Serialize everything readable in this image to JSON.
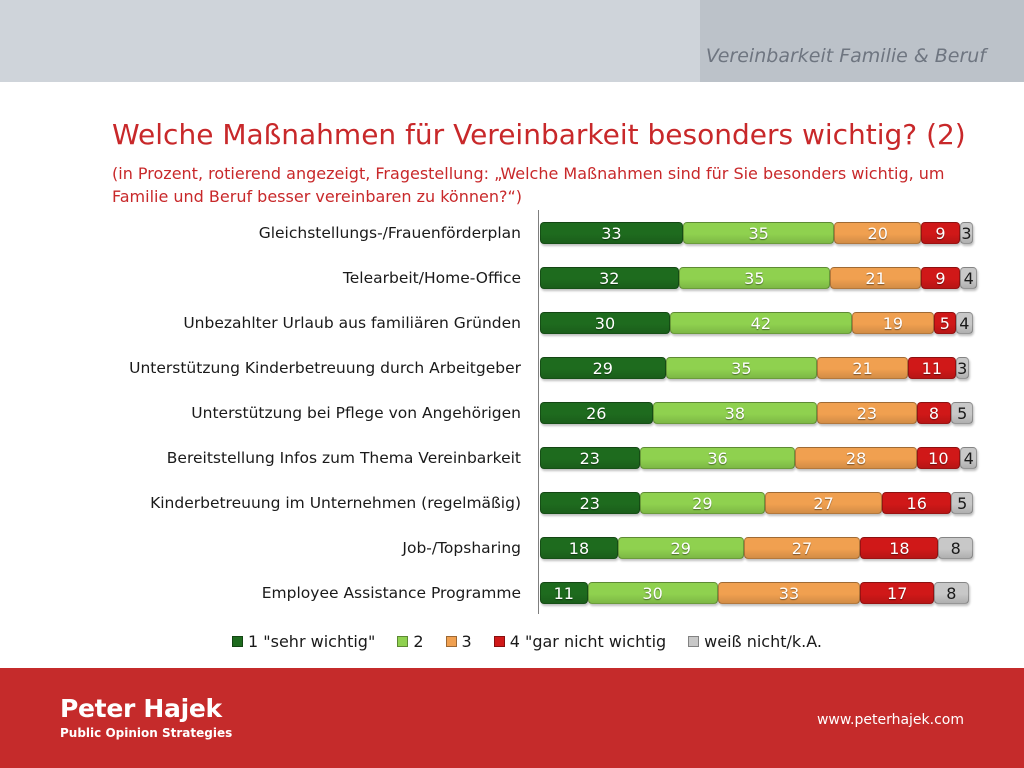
{
  "header": {
    "section_title": "Vereinbarkeit Familie & Beruf"
  },
  "title": "Welche Maßnahmen für Vereinbarkeit besonders wichtig? (2)",
  "subtitle": "(in Prozent, rotierend angezeigt, Fragestellung: „Welche Maßnahmen sind für Sie besonders wichtig, um Familie und Beruf besser vereinbaren zu können?“)",
  "colors": {
    "s1": "#1e6b1e",
    "s2": "#8fd14f",
    "s3": "#f0a050",
    "s4": "#d01818",
    "s5": "#c8c8c8",
    "accent": "#c8282a",
    "footer": "#c52b2b"
  },
  "chart_data": {
    "type": "bar",
    "orientation": "horizontal",
    "stacked": true,
    "categories": [
      "Gleichstellungs-/Frauenförderplan",
      "Telearbeit/Home-Office",
      "Unbezahlter Urlaub aus familiären Gründen",
      "Unterstützung Kinderbetreuung durch Arbeitgeber",
      "Unterstützung bei Pflege von Angehörigen",
      "Bereitstellung Infos zum Thema Vereinbarkeit",
      "Kinderbetreuung im Unternehmen (regelmäßig)",
      "Job-/Topsharing",
      "Employee Assistance Programme"
    ],
    "series": [
      {
        "name": "1 \"sehr wichtig\"",
        "values": [
          33,
          32,
          30,
          29,
          26,
          23,
          23,
          18,
          11
        ]
      },
      {
        "name": "2",
        "values": [
          35,
          35,
          42,
          35,
          38,
          36,
          29,
          29,
          30
        ]
      },
      {
        "name": "3",
        "values": [
          20,
          21,
          19,
          21,
          23,
          28,
          27,
          27,
          33
        ]
      },
      {
        "name": "4 \"gar nicht wichtig",
        "values": [
          9,
          9,
          5,
          11,
          8,
          10,
          16,
          18,
          17
        ]
      },
      {
        "name": "weiß nicht/k.A.",
        "values": [
          3,
          4,
          4,
          3,
          5,
          4,
          5,
          8,
          8
        ]
      }
    ],
    "xlim": [
      0,
      100
    ],
    "legend_position": "bottom",
    "grid": false,
    "data_labels": true
  },
  "footer": {
    "brand": "Peter Hajek",
    "brand_sub": "Public Opinion Strategies",
    "website": "www.peterhajek.com"
  }
}
